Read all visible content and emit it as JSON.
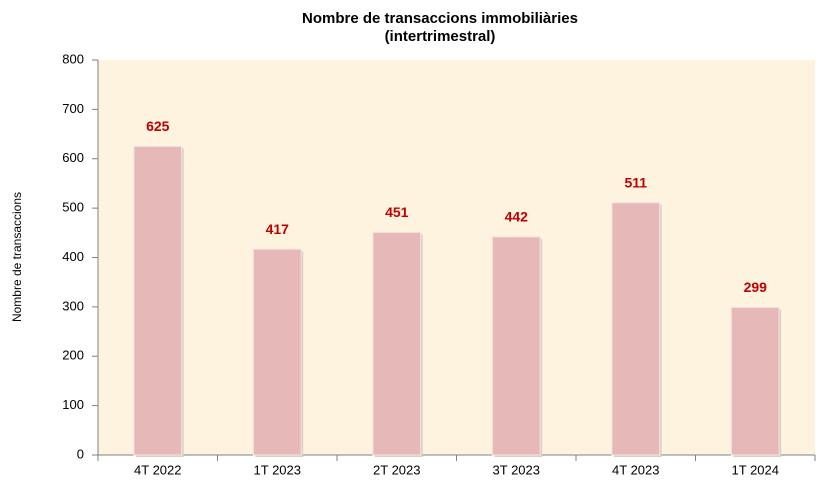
{
  "chart_data": {
    "type": "bar",
    "title": "Nombre de transaccions immobiliàries",
    "subtitle": "(intertrimestral)",
    "y_label": "Nombre de transaccions",
    "categories": [
      "4T 2022",
      "1T 2023",
      "2T 2023",
      "3T 2023",
      "4T 2023",
      "1T 2024"
    ],
    "values": [
      625,
      417,
      451,
      442,
      511,
      299
    ],
    "color": "#e6b9b8",
    "value_label_color": "#c00000",
    "plot_background": "#fdf3df",
    "ylim": [
      0,
      800
    ],
    "yticks": [
      0,
      100,
      200,
      300,
      400,
      500,
      600,
      700,
      800
    ],
    "grid": false
  }
}
